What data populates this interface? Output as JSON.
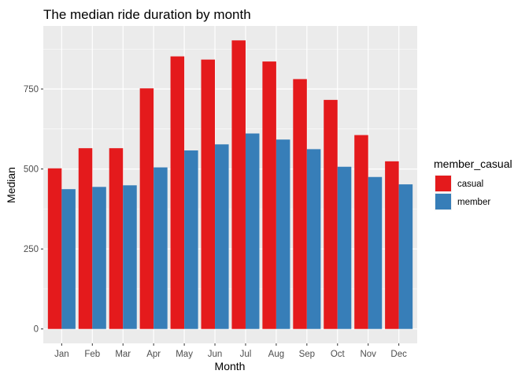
{
  "chart_data": {
    "type": "bar",
    "title": "The median ride duration by month",
    "xlabel": "Month",
    "ylabel": "Median",
    "categories": [
      "Jan",
      "Feb",
      "Mar",
      "Apr",
      "May",
      "Jun",
      "Jul",
      "Aug",
      "Sep",
      "Oct",
      "Nov",
      "Dec"
    ],
    "series": [
      {
        "name": "casual",
        "color": "#E41A1C",
        "values": [
          502,
          565,
          565,
          752,
          852,
          842,
          902,
          836,
          781,
          716,
          606,
          524
        ]
      },
      {
        "name": "member",
        "color": "#377EB8",
        "values": [
          437,
          444,
          449,
          505,
          558,
          577,
          611,
          592,
          562,
          507,
          475,
          452
        ]
      }
    ],
    "yticks": [
      0,
      250,
      500,
      750
    ],
    "ylim": [
      -45,
      947
    ],
    "grid": true,
    "legend": {
      "title": "member_casual",
      "placement": "right"
    },
    "panel_background": "#EBEBEB"
  }
}
